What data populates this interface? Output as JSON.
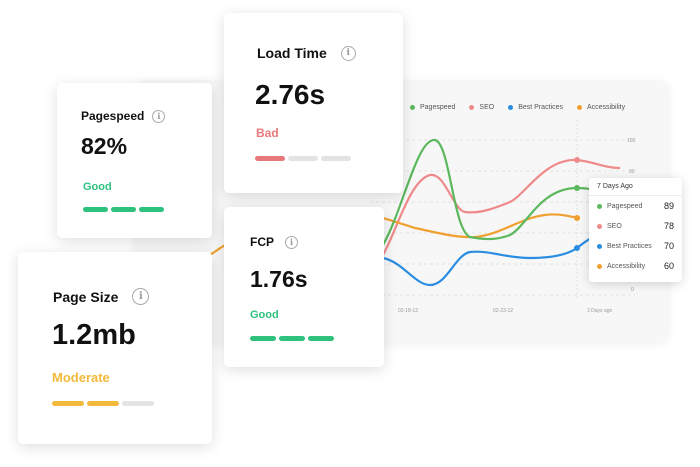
{
  "chart": {
    "legend": [
      {
        "label": "Pagespeed",
        "color": "#5cb85c"
      },
      {
        "label": "SEO",
        "color": "#ef8a8a"
      },
      {
        "label": "Best Practices",
        "color": "#2a8de0"
      },
      {
        "label": "Accessibility",
        "color": "#f0a030"
      }
    ],
    "y_ticks": [
      "100",
      "90",
      "0"
    ],
    "x_ticks": [
      "02-18-12",
      "02-23-12",
      "3 Days ago"
    ],
    "tooltip": {
      "title": "7 Days Ago",
      "rows": [
        {
          "label": "Pagespeed",
          "value": "89",
          "color": "#5cb85c"
        },
        {
          "label": "SEO",
          "value": "78",
          "color": "#ef8a8a"
        },
        {
          "label": "Best Practices",
          "value": "70",
          "color": "#2a8de0"
        },
        {
          "label": "Accessibility",
          "value": "60",
          "color": "#f0a030"
        }
      ]
    }
  },
  "cards": {
    "pagespeed": {
      "label": "Pagespeed",
      "value": "82%",
      "status": "Good",
      "status_color": "#2ec27e",
      "filled": 3,
      "total": 3
    },
    "load_time": {
      "label": "Load Time",
      "value": "2.76s",
      "status": "Bad",
      "status_color": "#e8797a",
      "filled": 1,
      "total": 3
    },
    "fcp": {
      "label": "FCP",
      "value": "1.76s",
      "status": "Good",
      "status_color": "#2ec27e",
      "filled": 3,
      "total": 3
    },
    "page_size": {
      "label": "Page Size",
      "value": "1.2mb",
      "status": "Moderate",
      "status_color": "#f3b93a",
      "filled": 2,
      "total": 3
    }
  },
  "icons": {
    "info": "info-icon"
  }
}
